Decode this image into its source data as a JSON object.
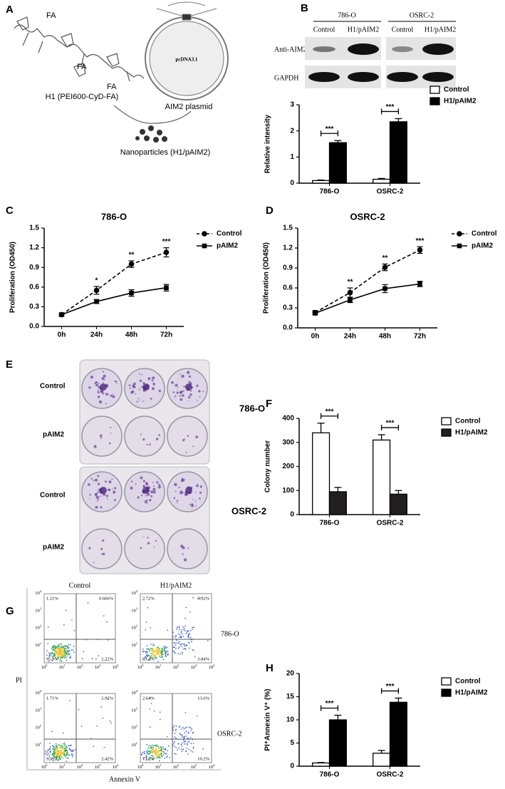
{
  "figure": {
    "panel_labels": [
      "A",
      "B",
      "C",
      "D",
      "E",
      "F",
      "G",
      "H"
    ]
  },
  "schematic": {
    "fa_label": "FA",
    "polymer_label": "H1 (PEI600-CyD-FA)",
    "plasmid_name": "pcDNA3.1",
    "plasmid_label": "AIM2 plasmid",
    "product_label": "Nanoparticles (H1/pAIM2)"
  },
  "western_blot": {
    "cell_lines": [
      "786-O",
      "OSRC-2"
    ],
    "lanes": [
      "Control",
      "H1/pAIM2",
      "Control",
      "H1/pAIM2"
    ],
    "rows": [
      "Anti-AIM2",
      "GAPDH"
    ]
  },
  "colony_plates": {
    "row_labels": [
      "Control",
      "pAIM2",
      "Control",
      "pAIM2"
    ],
    "cell_lines": [
      "786-O",
      "OSRC-2"
    ]
  },
  "flow_cytometry": {
    "columns": [
      "Control",
      "H1/pAIM2"
    ],
    "rows": [
      "786-O",
      "OSRC-2"
    ],
    "y_label": "PI",
    "x_label": "Annexin V",
    "tick_base": "10",
    "tick_exponents": [
      "0",
      "1",
      "2",
      "3",
      "4"
    ],
    "quadrants": [
      [
        [
          "1.21%",
          "0.666%",
          "95.9%",
          "2.22%"
        ],
        [
          "2.72%",
          "6.92%",
          "83.4%",
          "3.84%"
        ]
      ],
      [
        [
          "1.71%",
          "2.92%",
          "92.9%",
          "2.42%"
        ],
        [
          "2.64%",
          "13.6%",
          "73.6%",
          "10.2%"
        ]
      ]
    ]
  },
  "chart_data": [
    {
      "type": "bar",
      "categories": [
        "786-O",
        "OSRC-2"
      ],
      "series": [
        {
          "name": "Control",
          "color": "#ffffff",
          "values": [
            0.1,
            0.15
          ],
          "errors": [
            0.02,
            0.03
          ]
        },
        {
          "name": "H1/pAIM2",
          "color": "#000000",
          "values": [
            1.55,
            2.35
          ],
          "errors": [
            0.08,
            0.12
          ]
        }
      ],
      "y_label": "Relative intensity",
      "ylim": [
        0,
        3
      ],
      "yticks": [
        0,
        1,
        2,
        3
      ],
      "significance": [
        "***",
        "***"
      ],
      "legend": "right"
    },
    {
      "type": "line",
      "title": "786-O",
      "categories": [
        "0h",
        "24h",
        "48h",
        "72h"
      ],
      "series": [
        {
          "name": "Control",
          "color": "#000000",
          "line_style": "dashed",
          "marker": "circle",
          "values": [
            0.18,
            0.55,
            0.95,
            1.13
          ],
          "errors": [
            0.02,
            0.06,
            0.05,
            0.07
          ]
        },
        {
          "name": "pAIM2",
          "color": "#000000",
          "line_style": "solid",
          "marker": "square",
          "values": [
            0.18,
            0.38,
            0.51,
            0.59
          ],
          "errors": [
            0.02,
            0.03,
            0.05,
            0.05
          ]
        }
      ],
      "y_label": "Proliferation (OD450)",
      "ylim": [
        0,
        1.5
      ],
      "yticks": [
        {
          "value": 0,
          "label": "0.0"
        },
        0.3,
        0.6,
        0.9,
        1.2,
        1.5
      ],
      "annotations": [
        null,
        "*",
        "**",
        "***"
      ],
      "legend": "right"
    },
    {
      "type": "line",
      "title": "OSRC-2",
      "categories": [
        "0h",
        "24h",
        "48h",
        "72h"
      ],
      "series": [
        {
          "name": "Control",
          "color": "#000000",
          "line_style": "dashed",
          "marker": "circle",
          "values": [
            0.23,
            0.53,
            0.91,
            1.17
          ],
          "errors": [
            0.03,
            0.07,
            0.05,
            0.05
          ]
        },
        {
          "name": "pAIM2",
          "color": "#000000",
          "line_style": "solid",
          "marker": "square",
          "values": [
            0.22,
            0.42,
            0.59,
            0.66
          ],
          "errors": [
            0.02,
            0.04,
            0.06,
            0.04
          ]
        }
      ],
      "y_label": "Proliferation (OD450)",
      "ylim": [
        0,
        1.5
      ],
      "yticks": [
        {
          "value": 0,
          "label": "0.0"
        },
        0.3,
        0.6,
        0.9,
        1.2,
        1.5
      ],
      "annotations": [
        null,
        "**",
        "**",
        "***"
      ],
      "legend": "right"
    },
    {
      "type": "bar",
      "categories": [
        "786-O",
        "OSRC-2"
      ],
      "series": [
        {
          "name": "Control",
          "color": "#ffffff",
          "values": [
            340,
            310
          ],
          "errors": [
            40,
            22
          ]
        },
        {
          "name": "H1/pAIM2",
          "color": "#231f20",
          "values": [
            95,
            85
          ],
          "errors": [
            18,
            15
          ]
        }
      ],
      "y_label": "Colony number",
      "ylim": [
        0,
        400
      ],
      "yticks": [
        0,
        100,
        200,
        300,
        400
      ],
      "significance": [
        "***",
        "***"
      ],
      "legend": "right"
    },
    {
      "type": "bar",
      "categories": [
        "786-O",
        "OSRC-2"
      ],
      "series": [
        {
          "name": "Control",
          "color": "#ffffff",
          "values": [
            0.7,
            2.8
          ],
          "errors": [
            0.1,
            0.6
          ]
        },
        {
          "name": "H1/pAIM2",
          "color": "#000000",
          "values": [
            10,
            13.8
          ],
          "errors": [
            1.0,
            0.9
          ]
        }
      ],
      "y_label": "PI⁺Annexin V⁺ (%)",
      "ylim": [
        0,
        20
      ],
      "yticks": [
        0,
        5,
        10,
        15,
        20
      ],
      "significance": [
        "***",
        "***"
      ],
      "legend": "right"
    }
  ]
}
